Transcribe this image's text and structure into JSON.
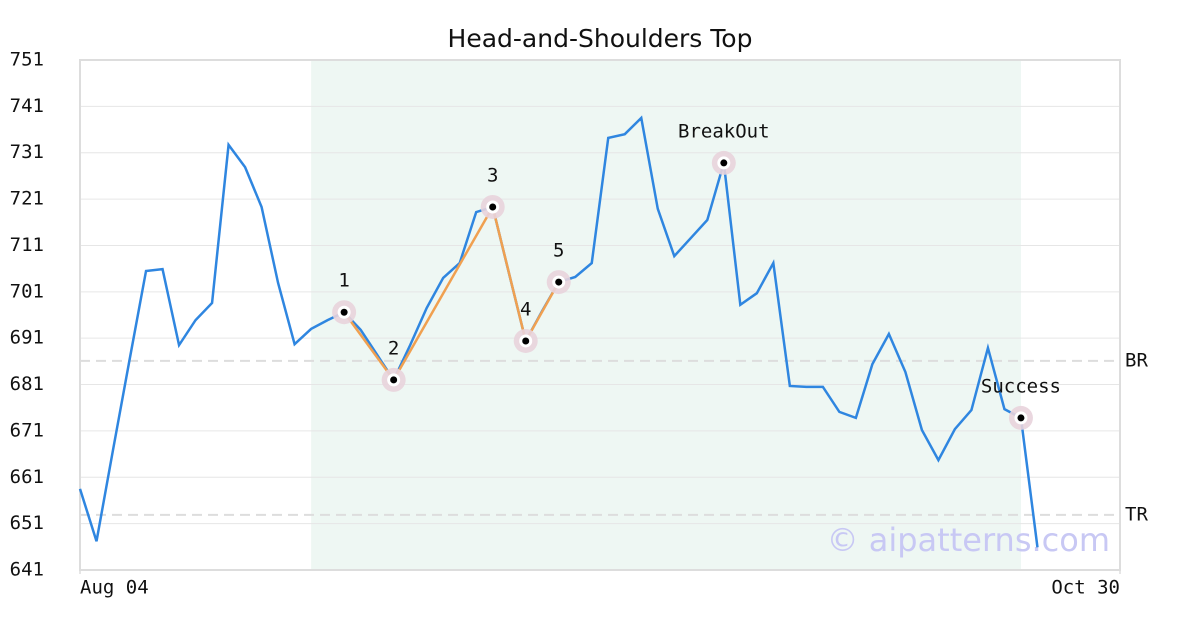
{
  "chart_data": {
    "type": "line",
    "title": "Head-and-Shoulders Top",
    "x": [
      0,
      1,
      2,
      3,
      4,
      5,
      6,
      7,
      8,
      9,
      10,
      11,
      12,
      13,
      14,
      15,
      16,
      17,
      18,
      19,
      20,
      21,
      22,
      23,
      24,
      25,
      26,
      27,
      28,
      29,
      30,
      31,
      32,
      33,
      34,
      35,
      36,
      37,
      38,
      39,
      40,
      41,
      42,
      43,
      44,
      45,
      46,
      47,
      48,
      49,
      50,
      51,
      52,
      53,
      54,
      55,
      56,
      57,
      58
    ],
    "series": [
      {
        "color": "#2f86e0",
        "values": [
          658.5,
          647.2,
          666.9,
          686.3,
          705.5,
          705.9,
          689.5,
          694.9,
          698.6,
          732.7,
          727.9,
          719.3,
          702.9,
          689.7,
          693.0,
          694.9,
          696.6,
          692.8,
          687.4,
          682.0,
          689.5,
          697.5,
          704.0,
          707.2,
          718.2,
          719.3,
          704.8,
          690.4,
          696.9,
          703.1,
          704.2,
          707.2,
          734.2,
          735.0,
          738.5,
          718.9,
          708.7,
          712.6,
          716.5,
          728.8,
          698.2,
          700.7,
          707.2,
          680.7,
          680.5,
          680.5,
          675.1,
          673.8,
          685.4,
          691.9,
          683.7,
          671.2,
          664.7,
          671.4,
          675.5,
          688.9,
          675.7,
          673.8,
          645.9
        ]
      }
    ],
    "xlim": [
      0,
      63
    ],
    "xticks": [
      {
        "value": 0,
        "label": "Aug 04"
      },
      {
        "value": 63,
        "label": "Oct 30"
      }
    ],
    "ylim": [
      641,
      751
    ],
    "yticks": [
      641,
      651,
      661,
      671,
      681,
      691,
      701,
      711,
      721,
      731,
      741,
      751
    ],
    "grid": true,
    "highlight_x": [
      14,
      57
    ],
    "highlight_color": "#eef7f3",
    "pattern_color": "#f0a050",
    "pattern": [
      {
        "label": "1",
        "x": 16,
        "y": 696.6
      },
      {
        "label": "2",
        "x": 19,
        "y": 682.0
      },
      {
        "label": "3",
        "x": 25,
        "y": 719.3
      },
      {
        "label": "4",
        "x": 27,
        "y": 690.4
      },
      {
        "label": "5",
        "x": 29,
        "y": 703.1
      }
    ],
    "events": [
      {
        "label": "BreakOut",
        "x": 39,
        "y": 728.8
      },
      {
        "label": "Success",
        "x": 57,
        "y": 673.8
      }
    ],
    "levels": [
      {
        "label": "BR",
        "y": 686.1
      },
      {
        "label": "TR",
        "y": 652.9
      }
    ],
    "watermark": "© aipatterns.com"
  }
}
